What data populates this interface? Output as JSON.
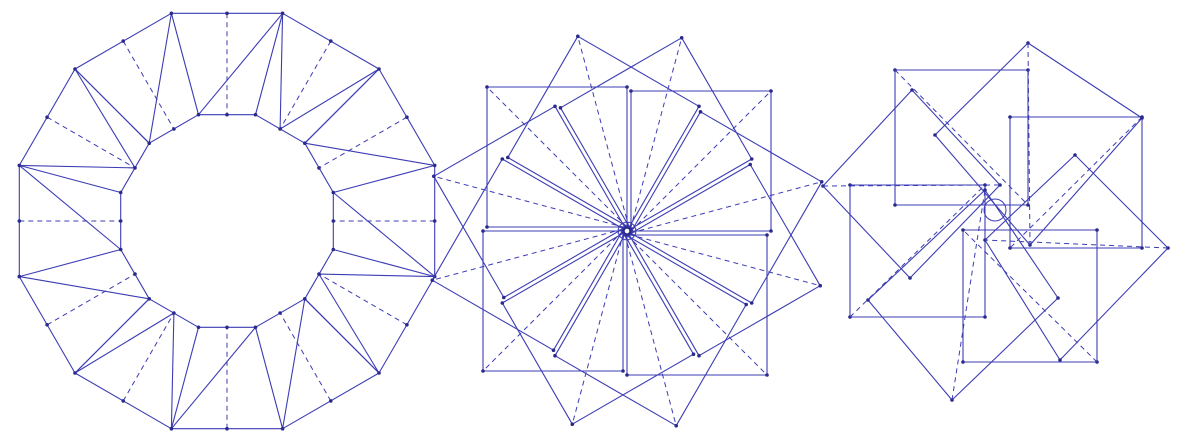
{
  "figure": {
    "background": "#ffffff",
    "line_color": "#3c3cb4",
    "point_color": "#2a2a8c",
    "panels": [
      {
        "name": "dodecagon-net",
        "regular_sides": 12,
        "segments": 12
      },
      {
        "name": "rotated-squares-rosette",
        "squares": 12,
        "rotation_step_deg": 30
      },
      {
        "name": "square-pinwheel",
        "squares": 4
      }
    ]
  }
}
